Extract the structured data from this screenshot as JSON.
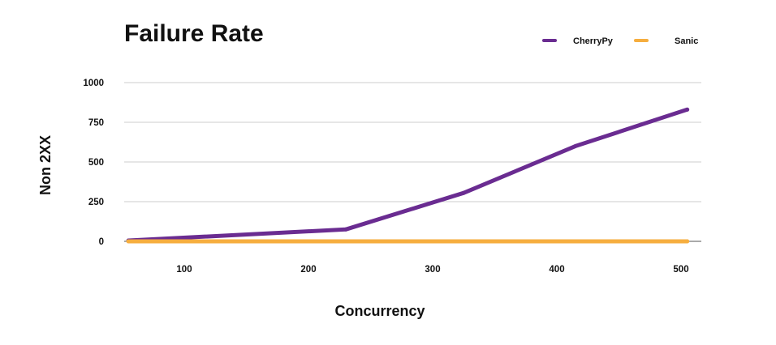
{
  "chart_data": {
    "type": "line",
    "title": "Failure Rate",
    "xlabel": "Concurrency",
    "ylabel": "Non 2XX",
    "xlim": [
      50,
      510
    ],
    "ylim": [
      0,
      1000
    ],
    "x_ticks": [
      "100",
      "200",
      "300",
      "400",
      "500"
    ],
    "x_tick_values": [
      100,
      200,
      300,
      400,
      500
    ],
    "y_ticks": [
      "0",
      "250",
      "500",
      "750",
      "1000"
    ],
    "y_tick_values": [
      0,
      250,
      500,
      750,
      1000
    ],
    "grid": true,
    "legend_position": "top-right",
    "series": [
      {
        "name": "CherryPy",
        "color": "#6a2c91",
        "x": [
          55,
          230,
          325,
          415,
          505
        ],
        "y": [
          5,
          75,
          305,
          600,
          830
        ]
      },
      {
        "name": "Sanic",
        "color": "#f6ae3f",
        "x": [
          55,
          505
        ],
        "y": [
          0,
          0
        ]
      }
    ]
  }
}
